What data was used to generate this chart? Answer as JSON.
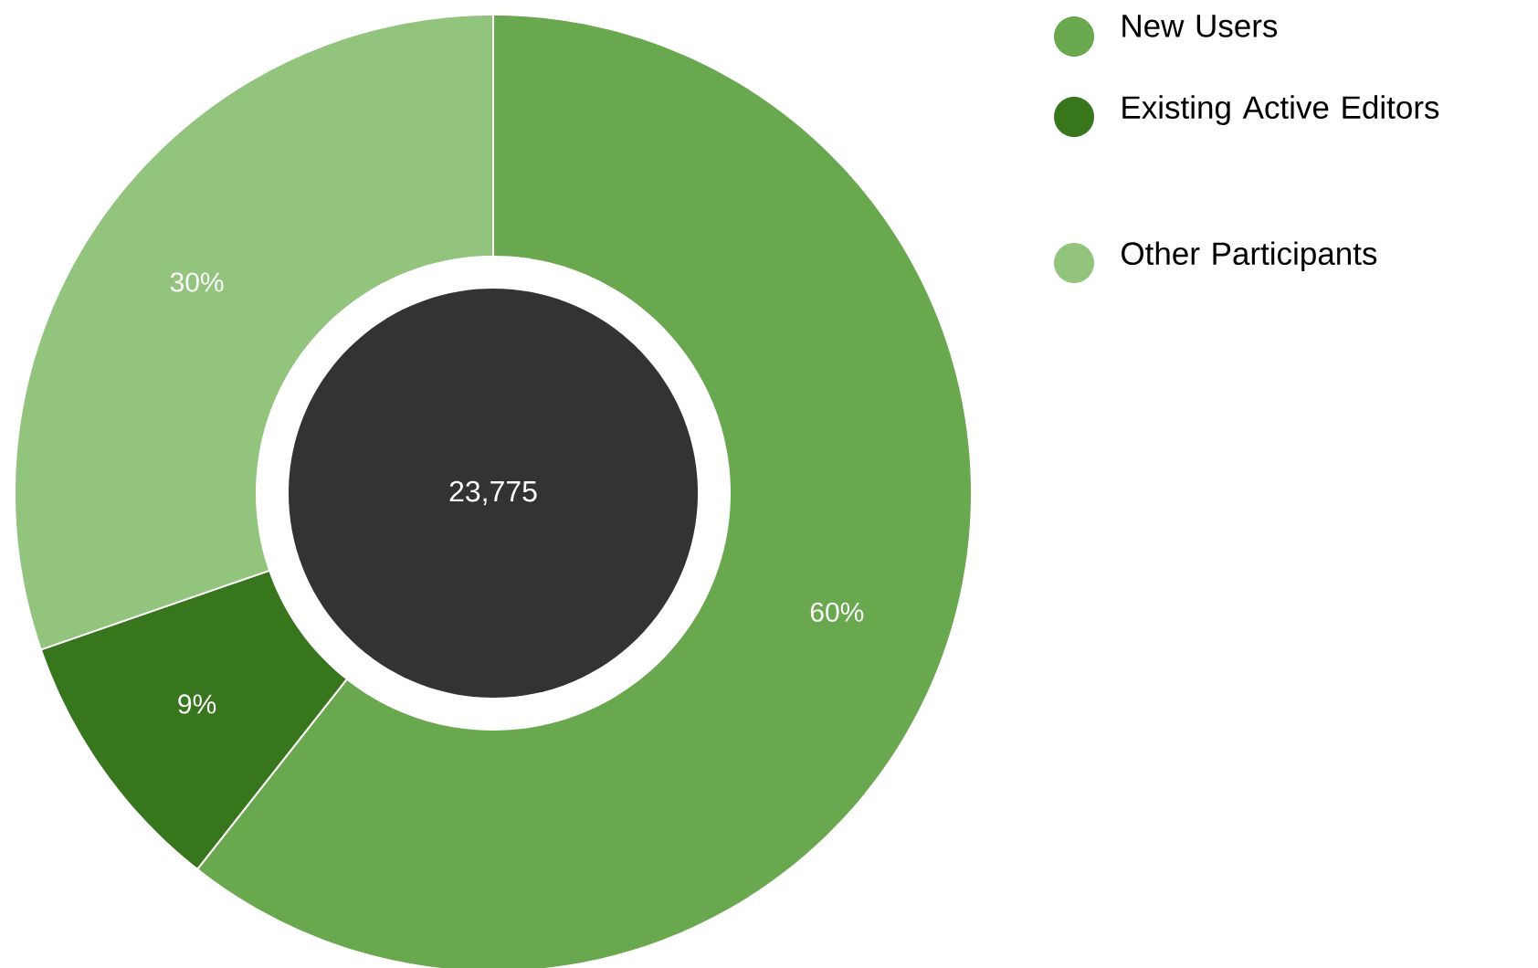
{
  "chart_data": {
    "type": "donut",
    "categories": [
      "New Users",
      "Existing Active Editors",
      "Other Participants"
    ],
    "values": [
      60,
      9,
      30
    ],
    "colors": [
      "#6aa84f",
      "#38761d",
      "#93c47d"
    ],
    "value_labels": [
      "60%",
      "9%",
      "30%"
    ],
    "annotations": [
      "23,775"
    ],
    "legend": "top right"
  }
}
